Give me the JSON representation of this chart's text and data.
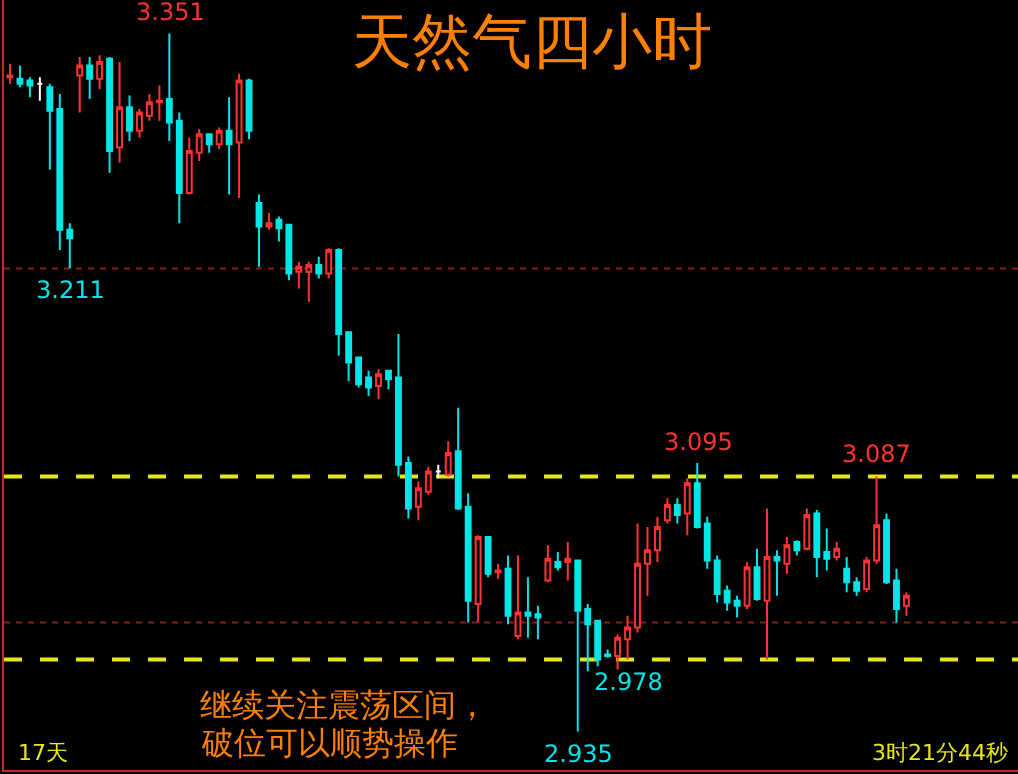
{
  "chart_data": {
    "type": "candlestick",
    "title": "天然气四小时",
    "tick_labels": false,
    "categories": [
      null,
      null,
      null,
      null,
      null,
      null,
      null,
      null,
      null,
      null,
      null,
      null,
      null,
      null,
      null,
      null,
      null,
      null,
      null,
      null,
      null,
      null,
      null,
      null,
      null,
      null,
      null,
      null,
      null,
      null,
      null,
      null,
      null,
      null,
      null,
      null,
      null,
      null,
      null,
      null,
      null,
      null,
      null,
      null,
      null,
      null,
      null,
      null,
      null,
      null,
      null,
      null,
      null,
      null,
      null,
      null,
      null,
      null,
      null,
      null,
      null,
      null,
      null,
      null,
      null,
      null,
      null,
      null,
      null,
      null,
      null,
      null,
      null,
      null,
      null,
      null,
      null,
      null,
      null,
      null,
      null,
      null,
      null,
      null,
      null,
      null,
      null,
      null,
      null,
      null,
      null
    ],
    "ohlc": [
      [
        3.325,
        3.333,
        3.321,
        3.326
      ],
      [
        3.324,
        3.332,
        3.319,
        3.321
      ],
      [
        3.323,
        3.325,
        3.313,
        3.32
      ],
      [
        3.321,
        3.325,
        3.311,
        3.321
      ],
      [
        3.319,
        3.321,
        3.27,
        3.305
      ],
      [
        3.306,
        3.315,
        3.222,
        3.234
      ],
      [
        3.234,
        3.238,
        3.211,
        3.229
      ],
      [
        3.326,
        3.337,
        3.304,
        3.332
      ],
      [
        3.332,
        3.337,
        3.312,
        3.324
      ],
      [
        3.324,
        3.338,
        3.318,
        3.334
      ],
      [
        3.336,
        3.337,
        3.268,
        3.281
      ],
      [
        3.283,
        3.334,
        3.274,
        3.307
      ],
      [
        3.307,
        3.314,
        3.287,
        3.293
      ],
      [
        3.293,
        3.306,
        3.289,
        3.304
      ],
      [
        3.302,
        3.315,
        3.299,
        3.31
      ],
      [
        3.31,
        3.32,
        3.299,
        3.311
      ],
      [
        3.312,
        3.351,
        3.287,
        3.298
      ],
      [
        3.299,
        3.304,
        3.238,
        3.256
      ],
      [
        3.256,
        3.289,
        3.255,
        3.281
      ],
      [
        3.28,
        3.294,
        3.275,
        3.291
      ],
      [
        3.291,
        3.291,
        3.28,
        3.285
      ],
      [
        3.285,
        3.295,
        3.282,
        3.293
      ],
      [
        3.293,
        3.313,
        3.255,
        3.285
      ],
      [
        3.286,
        3.327,
        3.253,
        3.323
      ],
      [
        3.323,
        3.324,
        3.288,
        3.293
      ],
      [
        3.25,
        3.255,
        3.212,
        3.236
      ],
      [
        3.236,
        3.244,
        3.234,
        3.238
      ],
      [
        3.24,
        3.242,
        3.227,
        3.235
      ],
      [
        3.237,
        3.237,
        3.204,
        3.208
      ],
      [
        3.209,
        3.215,
        3.199,
        3.212
      ],
      [
        3.209,
        3.215,
        3.191,
        3.213
      ],
      [
        3.213,
        3.218,
        3.205,
        3.208
      ],
      [
        3.208,
        3.223,
        3.205,
        3.222
      ],
      [
        3.222,
        3.223,
        3.159,
        3.172
      ],
      [
        3.173,
        3.173,
        3.144,
        3.155
      ],
      [
        3.158,
        3.158,
        3.14,
        3.142
      ],
      [
        3.146,
        3.15,
        3.135,
        3.14
      ],
      [
        3.141,
        3.151,
        3.133,
        3.148
      ],
      [
        3.15,
        3.15,
        3.139,
        3.145
      ],
      [
        3.146,
        3.172,
        3.087,
        3.094
      ],
      [
        3.095,
        3.099,
        3.062,
        3.068
      ],
      [
        3.069,
        3.084,
        3.061,
        3.08
      ],
      [
        3.078,
        3.093,
        3.076,
        3.09
      ],
      [
        3.09,
        3.094,
        3.086,
        3.09
      ],
      [
        3.088,
        3.108,
        3.087,
        3.101
      ],
      [
        3.102,
        3.128,
        3.067,
        3.068
      ],
      [
        3.069,
        3.077,
        3.0,
        3.013
      ],
      [
        3.011,
        3.052,
        3.0,
        3.051
      ],
      [
        3.051,
        3.051,
        3.027,
        3.029
      ],
      [
        3.03,
        3.035,
        3.026,
        3.031
      ],
      [
        3.032,
        3.04,
        2.999,
        3.004
      ],
      [
        2.992,
        3.04,
        2.99,
        3.006
      ],
      [
        3.006,
        3.027,
        2.991,
        3.004
      ],
      [
        3.005,
        3.01,
        2.99,
        3.003
      ],
      [
        3.025,
        3.046,
        3.024,
        3.038
      ],
      [
        3.036,
        3.042,
        3.031,
        3.033
      ],
      [
        3.036,
        3.048,
        3.025,
        3.038
      ],
      [
        3.037,
        3.037,
        2.935,
        3.007
      ],
      [
        3.008,
        3.011,
        2.971,
        2.999
      ],
      [
        3.001,
        3.001,
        2.974,
        2.978
      ],
      [
        2.981,
        2.984,
        2.979,
        2.98
      ],
      [
        2.98,
        2.993,
        2.972,
        2.991
      ],
      [
        2.99,
        3.004,
        2.978,
        2.997
      ],
      [
        2.997,
        3.059,
        2.994,
        3.035
      ],
      [
        3.035,
        3.057,
        3.016,
        3.043
      ],
      [
        3.043,
        3.063,
        3.036,
        3.057
      ],
      [
        3.061,
        3.074,
        3.059,
        3.07
      ],
      [
        3.07,
        3.074,
        3.059,
        3.064
      ],
      [
        3.065,
        3.086,
        3.052,
        3.083
      ],
      [
        3.083,
        3.095,
        3.056,
        3.057
      ],
      [
        3.059,
        3.063,
        3.032,
        3.037
      ],
      [
        3.037,
        3.04,
        3.012,
        3.017
      ],
      [
        3.019,
        3.022,
        3.007,
        3.012
      ],
      [
        3.013,
        3.016,
        3.003,
        3.01
      ],
      [
        3.01,
        3.036,
        3.008,
        3.033
      ],
      [
        3.033,
        3.044,
        3.013,
        3.014
      ],
      [
        3.013,
        3.068,
        2.978,
        3.039
      ],
      [
        3.039,
        3.043,
        3.016,
        3.037
      ],
      [
        3.035,
        3.051,
        3.029,
        3.046
      ],
      [
        3.048,
        3.049,
        3.04,
        3.043
      ],
      [
        3.044,
        3.068,
        3.043,
        3.064
      ],
      [
        3.065,
        3.067,
        3.027,
        3.039
      ],
      [
        3.042,
        3.056,
        3.031,
        3.038
      ],
      [
        3.039,
        3.048,
        3.037,
        3.044
      ],
      [
        3.032,
        3.039,
        3.018,
        3.024
      ],
      [
        3.024,
        3.027,
        3.016,
        3.019
      ],
      [
        3.02,
        3.039,
        3.018,
        3.037
      ],
      [
        3.037,
        3.087,
        3.035,
        3.058
      ],
      [
        3.061,
        3.065,
        3.023,
        3.024
      ],
      [
        3.025,
        3.032,
        3.0,
        3.008
      ],
      [
        3.01,
        3.018,
        3.004,
        3.016
      ]
    ],
    "colors": [
      "#ff3232",
      "#00e5e5",
      "#00e5e5",
      "#ffffff",
      "#00e5e5",
      "#00e5e5",
      "#00e5e5",
      "#ff3232",
      "#00e5e5",
      "#ff3232",
      "#00e5e5",
      "#ff3232",
      "#00e5e5",
      "#ff3232",
      "#ff3232",
      "#ff3232",
      "#00e5e5",
      "#00e5e5",
      "#ff3232",
      "#ff3232",
      "#00e5e5",
      "#ff3232",
      "#00e5e5",
      "#ff3232",
      "#00e5e5",
      "#00e5e5",
      "#ff3232",
      "#00e5e5",
      "#00e5e5",
      "#ff3232",
      "#ff3232",
      "#00e5e5",
      "#ff3232",
      "#00e5e5",
      "#00e5e5",
      "#00e5e5",
      "#00e5e5",
      "#ff3232",
      "#00e5e5",
      "#00e5e5",
      "#00e5e5",
      "#ff3232",
      "#ff3232",
      "#ffffff",
      "#ff3232",
      "#00e5e5",
      "#00e5e5",
      "#ff3232",
      "#00e5e5",
      "#ff3232",
      "#00e5e5",
      "#ff3232",
      "#00e5e5",
      "#00e5e5",
      "#ff3232",
      "#00e5e5",
      "#ff3232",
      "#00e5e5",
      "#00e5e5",
      "#00e5e5",
      "#00e5e5",
      "#ff3232",
      "#ff3232",
      "#ff3232",
      "#ff3232",
      "#ff3232",
      "#ff3232",
      "#00e5e5",
      "#ff3232",
      "#00e5e5",
      "#00e5e5",
      "#00e5e5",
      "#00e5e5",
      "#00e5e5",
      "#ff3232",
      "#00e5e5",
      "#ff3232",
      "#00e5e5",
      "#ff3232",
      "#00e5e5",
      "#ff3232",
      "#00e5e5",
      "#00e5e5",
      "#ff3232",
      "#00e5e5",
      "#00e5e5",
      "#ff3232",
      "#ff3232",
      "#00e5e5",
      "#00e5e5",
      "#ff3232"
    ],
    "ref_lines": [
      {
        "axis": "y",
        "value": 3.087,
        "color": "#e6e619",
        "line_style": "dashed"
      },
      {
        "axis": "y",
        "value": 2.978,
        "color": "#e6e619",
        "line_style": "dashed"
      },
      {
        "axis": "y",
        "value": 3.211,
        "color": "#8b1a1a",
        "line_style": "dotted"
      },
      {
        "axis": "y",
        "value": 3.0,
        "color": "#8b1a1a",
        "line_style": "dotted"
      }
    ],
    "annotations": [
      {
        "text": "3.351",
        "y": 3.351
      },
      {
        "text": "3.211",
        "y": 3.211
      },
      {
        "text": "3.095",
        "y": 3.095
      },
      {
        "text": "3.087",
        "y": 3.087
      },
      {
        "text": "2.978",
        "y": 2.978
      },
      {
        "text": "2.935",
        "y": 2.935
      },
      "继续关注震荡区间，",
      "破位可以顺势操作",
      "17天",
      "3时21分44秒"
    ]
  }
}
